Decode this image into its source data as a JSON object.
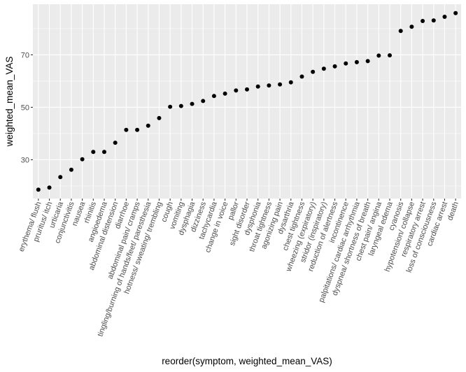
{
  "chart_data": {
    "type": "scatter",
    "xlabel": "reorder(symptom, weighted_mean_VAS)",
    "ylabel": "weighted_mean_VAS",
    "yticks": [
      30,
      50,
      70
    ],
    "ylim": [
      15.2,
      89.3
    ],
    "grid": true,
    "colors": {
      "panel": "#ebebeb",
      "grid": "#ffffff",
      "point": "#000000",
      "tick_text": "#4d4d4d"
    },
    "categories": [
      "erythema/ flush",
      "pruritus/ itch",
      "urticaria",
      "conjunctivitis",
      "nausea",
      "rhinitis",
      "angioedema",
      "abdominal distension",
      "diarrhoe",
      "abdominal pain/ cramps",
      "tingling/burning of hands/feet/ paresthesia",
      "hotness/ sweating/ trembling",
      "cough",
      "vomiting",
      "dysphagia",
      "dizziness",
      "tachycardia",
      "change in voice",
      "pallor",
      "sight disorder",
      "dysphonia",
      "throat tightness",
      "agonizing pain",
      "dysarthria",
      "chest tightness",
      "wheezing (expiratory)",
      "stridor (inspiratory)",
      "reduction of alertness",
      "incontinence",
      "palpitations/ cardiac arrhythmia",
      "dyspnea/ shortness of breath",
      "chest pain/ angina",
      "laryngeal edema",
      "cyanosis",
      "hypotension/ collapse",
      "respiratory arrest",
      "loss of consciousness",
      "cardiac arrest",
      "death"
    ],
    "values": [
      18.6,
      19.4,
      23.4,
      26.2,
      30.2,
      33.0,
      33.0,
      36.5,
      41.4,
      41.4,
      43.0,
      45.9,
      50.2,
      50.5,
      51.3,
      52.4,
      54.3,
      55.2,
      56.4,
      56.8,
      57.9,
      58.3,
      58.7,
      59.5,
      61.7,
      63.5,
      64.7,
      65.6,
      66.7,
      67.2,
      67.6,
      69.7,
      69.8,
      79.1,
      80.7,
      82.9,
      83.1,
      84.5,
      85.9
    ]
  }
}
